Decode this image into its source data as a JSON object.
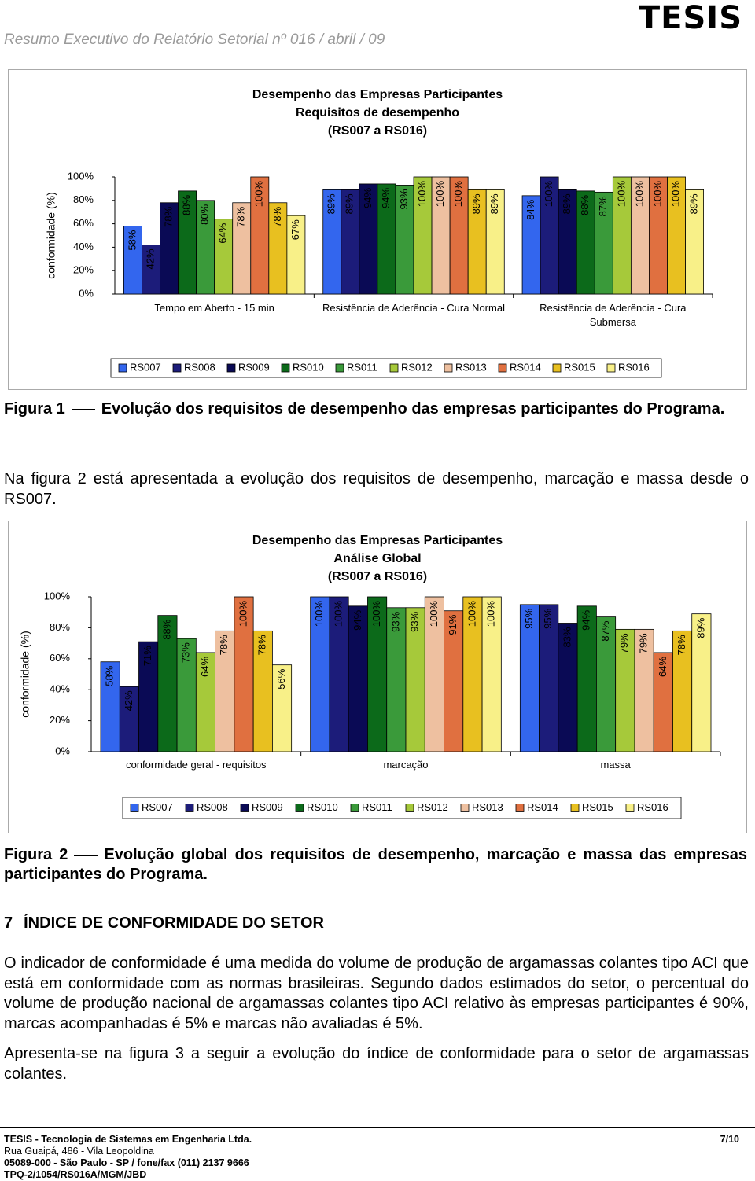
{
  "header": {
    "title": "Resumo Executivo do Relatório Setorial nº 016 / abril / 09",
    "logo": "TESIS"
  },
  "chart_data": [
    {
      "type": "bar",
      "title": [
        "Desempenho das Empresas Participantes",
        "Requisitos de desempenho",
        "(RS007 a RS016)"
      ],
      "y_label": "conformidade (%)",
      "categories": [
        "Tempo em Aberto - 15 min",
        "Resistência de Aderência - Cura Normal",
        "Resistência de Aderência - Cura Submersa"
      ],
      "ylim": [
        0,
        100
      ],
      "yticks": [
        {
          "value": 0,
          "label": "0%"
        },
        {
          "value": 20,
          "label": "20%"
        },
        {
          "value": 40,
          "label": "40%"
        },
        {
          "value": 60,
          "label": "60%"
        },
        {
          "value": 80,
          "label": "80%"
        },
        {
          "value": 100,
          "label": "100%"
        }
      ],
      "series": [
        {
          "name": "RS007",
          "color": "#3366ee",
          "values": [
            58,
            89,
            84
          ],
          "value_labels": [
            "58%",
            "89%",
            "84%"
          ]
        },
        {
          "name": "RS008",
          "color": "#1c1c7a",
          "values": [
            42,
            89,
            100
          ],
          "value_labels": [
            "42%",
            "89%",
            "100%"
          ]
        },
        {
          "name": "RS009",
          "color": "#0a0a55",
          "values": [
            78,
            94,
            89
          ],
          "value_labels": [
            "78%",
            "94%",
            "89%"
          ]
        },
        {
          "name": "RS010",
          "color": "#0c6a1a",
          "values": [
            88,
            94,
            88
          ],
          "value_labels": [
            "88%",
            "94%",
            "88%"
          ]
        },
        {
          "name": "RS011",
          "color": "#3a9a3a",
          "values": [
            80,
            93,
            87
          ],
          "value_labels": [
            "80%",
            "93%",
            "87%"
          ]
        },
        {
          "name": "RS012",
          "color": "#a6c93a",
          "values": [
            64,
            100,
            100
          ],
          "value_labels": [
            "64%",
            "100%",
            "100%"
          ]
        },
        {
          "name": "RS013",
          "color": "#eec0a0",
          "values": [
            78,
            100,
            100
          ],
          "value_labels": [
            "78%",
            "100%",
            "100%"
          ]
        },
        {
          "name": "RS014",
          "color": "#e07040",
          "values": [
            100,
            100,
            100
          ],
          "value_labels": [
            "100%",
            "100%",
            "100%"
          ]
        },
        {
          "name": "RS015",
          "color": "#e8c020",
          "values": [
            78,
            89,
            100
          ],
          "value_labels": [
            "78%",
            "89%",
            "100%"
          ]
        },
        {
          "name": "RS016",
          "color": "#f8f088",
          "values": [
            67,
            89,
            89
          ],
          "value_labels": [
            "67%",
            "89%",
            "89%"
          ]
        }
      ]
    },
    {
      "type": "bar",
      "title": [
        "Desempenho das Empresas Participantes",
        "Análise Global",
        "(RS007 a RS016)"
      ],
      "y_label": "conformidade (%)",
      "categories": [
        "conformidade geral - requisitos",
        "marcação",
        "massa"
      ],
      "ylim": [
        0,
        100
      ],
      "yticks": [
        {
          "value": 0,
          "label": "0%"
        },
        {
          "value": 20,
          "label": "20%"
        },
        {
          "value": 40,
          "label": "40%"
        },
        {
          "value": 60,
          "label": "60%"
        },
        {
          "value": 80,
          "label": "80%"
        },
        {
          "value": 100,
          "label": "100%"
        }
      ],
      "series": [
        {
          "name": "RS007",
          "color": "#3366ee",
          "values": [
            58,
            100,
            95
          ],
          "value_labels": [
            "58%",
            "100%",
            "95%"
          ]
        },
        {
          "name": "RS008",
          "color": "#1c1c7a",
          "values": [
            42,
            100,
            95
          ],
          "value_labels": [
            "42%",
            "100%",
            "95%"
          ]
        },
        {
          "name": "RS009",
          "color": "#0a0a55",
          "values": [
            71,
            94,
            83
          ],
          "value_labels": [
            "71%",
            "94%",
            "83%"
          ]
        },
        {
          "name": "RS010",
          "color": "#0c6a1a",
          "values": [
            88,
            100,
            94
          ],
          "value_labels": [
            "88%",
            "100%",
            "94%"
          ]
        },
        {
          "name": "RS011",
          "color": "#3a9a3a",
          "values": [
            73,
            93,
            87
          ],
          "value_labels": [
            "73%",
            "93%",
            "87%"
          ]
        },
        {
          "name": "RS012",
          "color": "#a6c93a",
          "values": [
            64,
            93,
            79
          ],
          "value_labels": [
            "64%",
            "93%",
            "79%"
          ]
        },
        {
          "name": "RS013",
          "color": "#eec0a0",
          "values": [
            78,
            100,
            79
          ],
          "value_labels": [
            "78%",
            "100%",
            "79%"
          ]
        },
        {
          "name": "RS014",
          "color": "#e07040",
          "values": [
            100,
            91,
            64
          ],
          "value_labels": [
            "100%",
            "91%",
            "64%"
          ]
        },
        {
          "name": "RS015",
          "color": "#e8c020",
          "values": [
            78,
            100,
            78
          ],
          "value_labels": [
            "78%",
            "100%",
            "78%"
          ]
        },
        {
          "name": "RS016",
          "color": "#f8f088",
          "values": [
            56,
            100,
            89
          ],
          "value_labels": [
            "56%",
            "100%",
            "89%"
          ]
        }
      ]
    }
  ],
  "figure1": {
    "label": "Figura 1",
    "text": "Evolução dos requisitos de desempenho das empresas participantes do Programa."
  },
  "paragraph1": "Na figura 2 está apresentada a evolução dos requisitos de desempenho, marcação e massa desde o RS007.",
  "figure2": {
    "label": "Figura 2",
    "text": "Evolução global dos requisitos de desempenho, marcação e massa das empresas participantes do Programa."
  },
  "section": {
    "number": "7",
    "title": "ÍNDICE DE CONFORMIDADE DO SETOR"
  },
  "paragraph2": "O indicador de conformidade é uma medida do volume de produção de argamassas colantes tipo ACI que está em conformidade com as normas brasileiras. Segundo dados estimados do setor, o percentual do volume de produção nacional de argamassas colantes tipo ACI relativo às empresas participantes é 90%, marcas acompanhadas é 5% e marcas não avaliadas é 5%.",
  "paragraph3": "Apresenta-se na figura 3 a seguir a evolução do índice de conformidade para o setor de argamassas colantes.",
  "footer": {
    "company": "TESIS - Tecnologia de Sistemas em Engenharia Ltda.",
    "page": "7/10",
    "address": "Rua Guaipá, 486 - Vila Leopoldina",
    "city": "05089-000 - São Paulo - SP / fone/fax (011) 2137 9666",
    "ref": "TPQ-2/1054/RS016A/MGM/JBD"
  }
}
